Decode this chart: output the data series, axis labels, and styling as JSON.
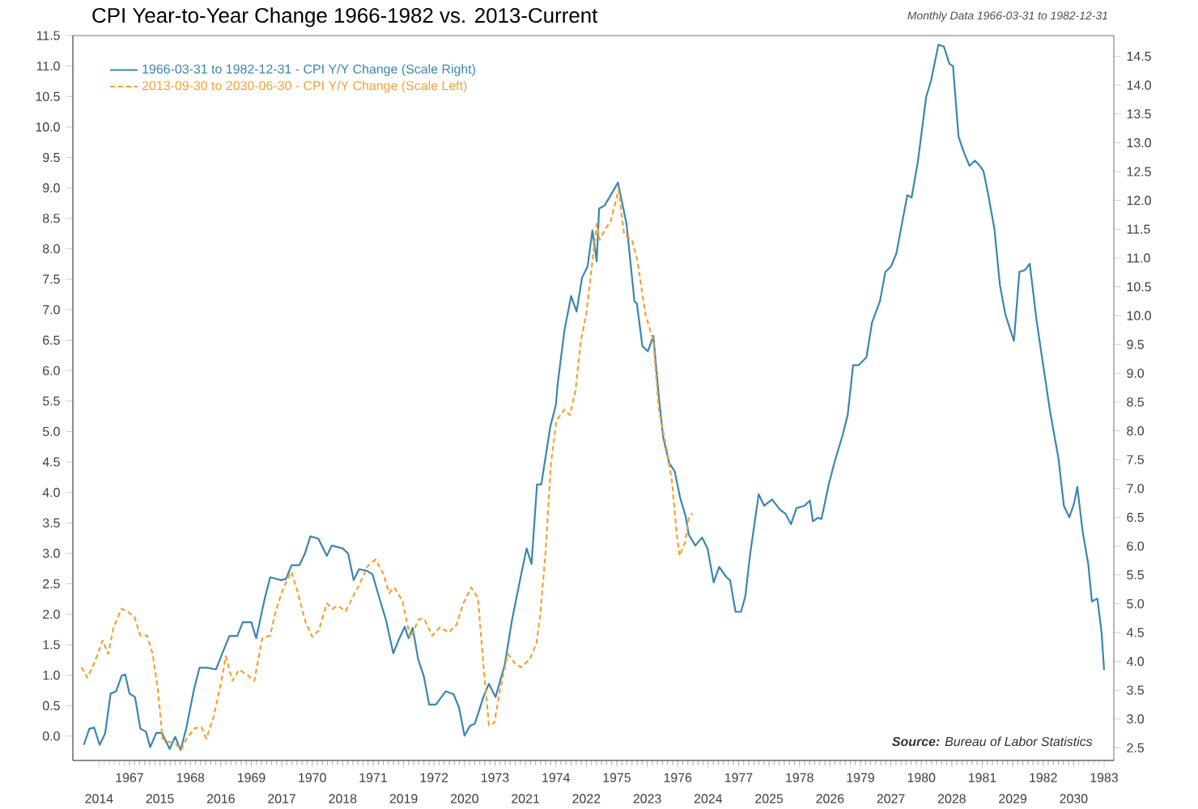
{
  "chart_data": {
    "type": "line",
    "title": "CPI Year-to-Year Change 1966-1982 vs. 2013-Current",
    "subtitle": "Monthly Data 1966-03-31 to 1982-12-31",
    "annotations": [
      "**Source:**  Bureau of Labor Statistics"
    ],
    "legend": "top left",
    "grid": false,
    "xlim": [
      1966.07,
      1983.16
    ],
    "xticks": [
      1967,
      1968,
      1969,
      1970,
      1971,
      1972,
      1973,
      1974,
      1975,
      1976,
      1977,
      1978,
      1979,
      1980,
      1981,
      1982,
      1983
    ],
    "x2lim": [
      2013.57,
      2030.66
    ],
    "x2ticks": [
      2014,
      2015,
      2016,
      2017,
      2018,
      2019,
      2020,
      2021,
      2022,
      2023,
      2024,
      2025,
      2026,
      2027,
      2028,
      2029,
      2030
    ],
    "ylim": [
      -0.4,
      11.5
    ],
    "yticks": [
      {
        "value": 0,
        "label": "0.0"
      },
      0.5,
      {
        "value": 1,
        "label": "1.0"
      },
      1.5,
      {
        "value": 2,
        "label": "2.0"
      },
      2.5,
      {
        "value": 3,
        "label": "3.0"
      },
      3.5,
      {
        "value": 4,
        "label": "4.0"
      },
      4.5,
      {
        "value": 5,
        "label": "5.0"
      },
      5.5,
      {
        "value": 6,
        "label": "6.0"
      },
      6.5,
      {
        "value": 7,
        "label": "7.0"
      },
      7.5,
      {
        "value": 8,
        "label": "8.0"
      },
      8.5,
      {
        "value": 9,
        "label": "9.0"
      },
      9.5,
      {
        "value": 10,
        "label": "10.0"
      },
      10.5,
      {
        "value": 11,
        "label": "11.0"
      },
      11.5
    ],
    "y2lim": [
      2.28,
      14.86
    ],
    "y2ticks": [
      2.5,
      {
        "value": 3,
        "label": "3.0"
      },
      3.5,
      {
        "value": 4,
        "label": "4.0"
      },
      4.5,
      {
        "value": 5,
        "label": "5.0"
      },
      5.5,
      {
        "value": 6,
        "label": "6.0"
      },
      6.5,
      {
        "value": 7,
        "label": "7.0"
      },
      7.5,
      {
        "value": 8,
        "label": "8.0"
      },
      8.5,
      {
        "value": 9,
        "label": "9.0"
      },
      9.5,
      {
        "value": 10,
        "label": "10.0"
      },
      10.5,
      {
        "value": 11,
        "label": "11.0"
      },
      11.5,
      {
        "value": 12,
        "label": "12.0"
      },
      12.5,
      {
        "value": 13,
        "label": "13.0"
      },
      13.5,
      {
        "value": 14,
        "label": "14.0"
      },
      14.5
    ],
    "series": [
      {
        "name": "1966-03-31 to 1982-12-31 - CPI Y/Y Change (Scale Right)",
        "color": "#3a86b0",
        "axis": "y2",
        "line_style": "solid",
        "x": [
          1966.25,
          1966.34,
          1966.42,
          1966.51,
          1966.6,
          1966.69,
          1966.78,
          1966.87,
          1966.93,
          1967.0,
          1967.09,
          1967.18,
          1967.27,
          1967.34,
          1967.44,
          1967.53,
          1967.66,
          1967.75,
          1967.84,
          1967.93,
          1968.06,
          1968.15,
          1968.28,
          1968.42,
          1968.55,
          1968.64,
          1968.77,
          1968.86,
          1969.0,
          1969.08,
          1969.22,
          1969.31,
          1969.48,
          1969.57,
          1969.66,
          1969.79,
          1969.88,
          1969.97,
          1970.1,
          1970.24,
          1970.32,
          1970.5,
          1970.59,
          1970.68,
          1970.77,
          1970.9,
          1970.99,
          1971.08,
          1971.21,
          1971.33,
          1971.43,
          1971.52,
          1971.58,
          1971.65,
          1971.74,
          1971.83,
          1971.92,
          1972.03,
          1972.19,
          1972.32,
          1972.41,
          1972.5,
          1972.59,
          1972.67,
          1972.81,
          1972.9,
          1973.01,
          1973.16,
          1973.28,
          1973.43,
          1973.52,
          1973.6,
          1973.69,
          1973.76,
          1973.91,
          1974.0,
          1974.03,
          1974.14,
          1974.25,
          1974.34,
          1974.43,
          1974.52,
          1974.6,
          1974.67,
          1974.71,
          1974.8,
          1975.02,
          1975.16,
          1975.29,
          1975.33,
          1975.42,
          1975.51,
          1975.6,
          1975.69,
          1975.76,
          1975.86,
          1975.95,
          1976.04,
          1976.13,
          1976.18,
          1976.29,
          1976.4,
          1976.49,
          1976.59,
          1976.68,
          1976.8,
          1976.86,
          1976.95,
          1977.04,
          1977.11,
          1977.19,
          1977.33,
          1977.42,
          1977.55,
          1977.68,
          1977.77,
          1977.86,
          1977.95,
          1978.08,
          1978.17,
          1978.22,
          1978.3,
          1978.36,
          1978.48,
          1978.57,
          1978.66,
          1978.7,
          1978.79,
          1978.88,
          1978.97,
          1979.1,
          1979.19,
          1979.32,
          1979.41,
          1979.5,
          1979.59,
          1979.68,
          1979.77,
          1979.84,
          1979.94,
          1980.08,
          1980.16,
          1980.28,
          1980.37,
          1980.46,
          1980.52,
          1980.61,
          1980.7,
          1980.79,
          1980.88,
          1980.96,
          1981.02,
          1981.1,
          1981.2,
          1981.29,
          1981.38,
          1981.52,
          1981.61,
          1981.7,
          1981.78,
          1981.89,
          1981.98,
          1982.11,
          1982.25,
          1982.34,
          1982.43,
          1982.51,
          1982.56,
          1982.65,
          1982.74,
          1982.8,
          1982.89,
          1982.96,
          1983.0
        ],
        "values": [
          2.55,
          2.83,
          2.85,
          2.55,
          2.75,
          3.44,
          3.48,
          3.75,
          3.77,
          3.44,
          3.38,
          2.83,
          2.78,
          2.51,
          2.76,
          2.76,
          2.48,
          2.69,
          2.46,
          2.83,
          3.52,
          3.89,
          3.89,
          3.86,
          4.21,
          4.44,
          4.44,
          4.68,
          4.68,
          4.4,
          5.09,
          5.46,
          5.41,
          5.43,
          5.67,
          5.67,
          5.87,
          6.17,
          6.13,
          5.83,
          6.01,
          5.96,
          5.87,
          5.41,
          5.6,
          5.57,
          5.51,
          5.18,
          4.72,
          4.14,
          4.4,
          4.6,
          4.4,
          4.58,
          4.03,
          3.75,
          3.25,
          3.25,
          3.48,
          3.43,
          3.2,
          2.71,
          2.88,
          2.92,
          3.38,
          3.61,
          3.38,
          3.94,
          4.72,
          5.51,
          5.96,
          5.69,
          7.07,
          7.07,
          8.08,
          8.45,
          8.82,
          9.74,
          10.34,
          10.07,
          10.66,
          10.85,
          11.48,
          10.94,
          11.86,
          11.91,
          12.31,
          11.59,
          10.25,
          10.21,
          9.47,
          9.38,
          9.65,
          8.6,
          7.9,
          7.44,
          7.3,
          6.84,
          6.52,
          6.2,
          6.01,
          6.15,
          5.96,
          5.37,
          5.64,
          5.46,
          5.41,
          4.86,
          4.86,
          5.13,
          5.87,
          6.9,
          6.7,
          6.81,
          6.63,
          6.56,
          6.38,
          6.66,
          6.7,
          6.79,
          6.43,
          6.49,
          6.47,
          7.07,
          7.44,
          7.76,
          7.9,
          8.27,
          9.14,
          9.14,
          9.28,
          9.88,
          10.25,
          10.76,
          10.85,
          11.08,
          11.59,
          12.09,
          12.05,
          12.65,
          13.8,
          14.08,
          14.7,
          14.67,
          14.37,
          14.33,
          13.11,
          12.83,
          12.6,
          12.69,
          12.6,
          12.51,
          12.09,
          11.5,
          10.53,
          10.02,
          9.56,
          10.76,
          10.79,
          10.9,
          9.93,
          9.28,
          8.36,
          7.53,
          6.7,
          6.5,
          6.75,
          7.03,
          6.24,
          5.69,
          5.04,
          5.09,
          4.49,
          3.85
        ]
      },
      {
        "name": "2013-09-30 to 2030-06-30 - CPI Y/Y Change (Scale Left)",
        "color": "#f5a030",
        "axis": "x2",
        "line_style": "dashed",
        "x": [
          2013.71,
          2013.81,
          2013.93,
          2014.06,
          2014.15,
          2014.24,
          2014.37,
          2014.46,
          2014.58,
          2014.68,
          2014.79,
          2014.88,
          2014.97,
          2015.04,
          2015.13,
          2015.26,
          2015.35,
          2015.44,
          2015.57,
          2015.68,
          2015.76,
          2015.88,
          2016.01,
          2016.08,
          2016.19,
          2016.3,
          2016.44,
          2016.55,
          2016.68,
          2016.81,
          2016.9,
          2017.03,
          2017.16,
          2017.25,
          2017.39,
          2017.5,
          2017.61,
          2017.74,
          2017.83,
          2017.92,
          2018.05,
          2018.16,
          2018.27,
          2018.41,
          2018.54,
          2018.67,
          2018.76,
          2018.85,
          2018.98,
          2019.11,
          2019.25,
          2019.34,
          2019.47,
          2019.6,
          2019.74,
          2019.87,
          2019.98,
          2020.11,
          2020.22,
          2020.31,
          2020.4,
          2020.49,
          2020.58,
          2020.71,
          2020.84,
          2020.93,
          2021.07,
          2021.18,
          2021.24,
          2021.33,
          2021.42,
          2021.51,
          2021.64,
          2021.73,
          2021.82,
          2021.91,
          2022.0,
          2022.09,
          2022.17,
          2022.22,
          2022.31,
          2022.4,
          2022.53,
          2022.62,
          2022.75,
          2022.84,
          2022.97,
          2023.1,
          2023.19,
          2023.24,
          2023.33,
          2023.41,
          2023.48,
          2023.53,
          2023.62,
          2023.68,
          2023.74
        ],
        "values": [
          1.13,
          0.96,
          1.22,
          1.57,
          1.35,
          1.79,
          2.09,
          2.05,
          1.96,
          1.65,
          1.65,
          1.35,
          0.74,
          -0.04,
          -0.09,
          -0.13,
          -0.22,
          -0.04,
          0.13,
          0.15,
          -0.04,
          0.31,
          0.91,
          1.31,
          0.91,
          1.09,
          1.0,
          0.91,
          1.61,
          1.65,
          2.05,
          2.44,
          2.7,
          2.4,
          1.87,
          1.63,
          1.74,
          2.18,
          2.09,
          2.14,
          2.05,
          2.27,
          2.48,
          2.79,
          2.9,
          2.66,
          2.35,
          2.44,
          2.22,
          1.61,
          1.92,
          1.92,
          1.65,
          1.79,
          1.7,
          1.83,
          2.18,
          2.44,
          2.27,
          1.18,
          0.18,
          0.22,
          0.74,
          1.35,
          1.18,
          1.13,
          1.26,
          1.52,
          1.96,
          3.01,
          4.49,
          5.18,
          5.36,
          5.27,
          5.66,
          6.49,
          6.93,
          7.71,
          8.41,
          8.15,
          8.32,
          8.45,
          8.97,
          8.23,
          8.15,
          7.8,
          6.93,
          6.49,
          5.36,
          5.1,
          4.66,
          4.14,
          3.35,
          2.96,
          3.18,
          3.57,
          3.66
        ]
      }
    ]
  }
}
